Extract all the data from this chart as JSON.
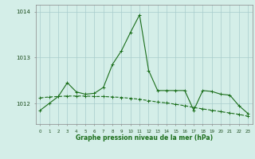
{
  "hours": [
    0,
    1,
    2,
    3,
    4,
    5,
    6,
    7,
    8,
    9,
    10,
    11,
    12,
    13,
    14,
    15,
    16,
    17,
    18,
    19,
    20,
    21,
    22,
    23
  ],
  "jagged": [
    1011.85,
    1012.0,
    1012.15,
    1012.45,
    1012.25,
    1012.2,
    1012.22,
    1012.35,
    1012.85,
    1013.15,
    1013.55,
    1013.93,
    1012.72,
    1012.28,
    1012.28,
    1012.28,
    1012.28,
    1011.85,
    1012.28,
    1012.26,
    1012.2,
    1012.18,
    1011.95,
    1011.78
  ],
  "smooth": [
    1012.12,
    1012.14,
    1012.15,
    1012.16,
    1012.16,
    1012.16,
    1012.15,
    1012.15,
    1012.14,
    1012.13,
    1012.11,
    1012.09,
    1012.06,
    1012.03,
    1012.01,
    1011.98,
    1011.95,
    1011.91,
    1011.88,
    1011.85,
    1011.82,
    1011.79,
    1011.76,
    1011.72
  ],
  "line_color": "#1a6e1a",
  "bg_color": "#d4eee8",
  "grid_color": "#a8cccc",
  "title": "Graphe pression niveau de la mer (hPa)",
  "yticks": [
    1012,
    1013,
    1014
  ],
  "ylim": [
    1011.55,
    1014.15
  ],
  "xlim": [
    -0.5,
    23.5
  ]
}
